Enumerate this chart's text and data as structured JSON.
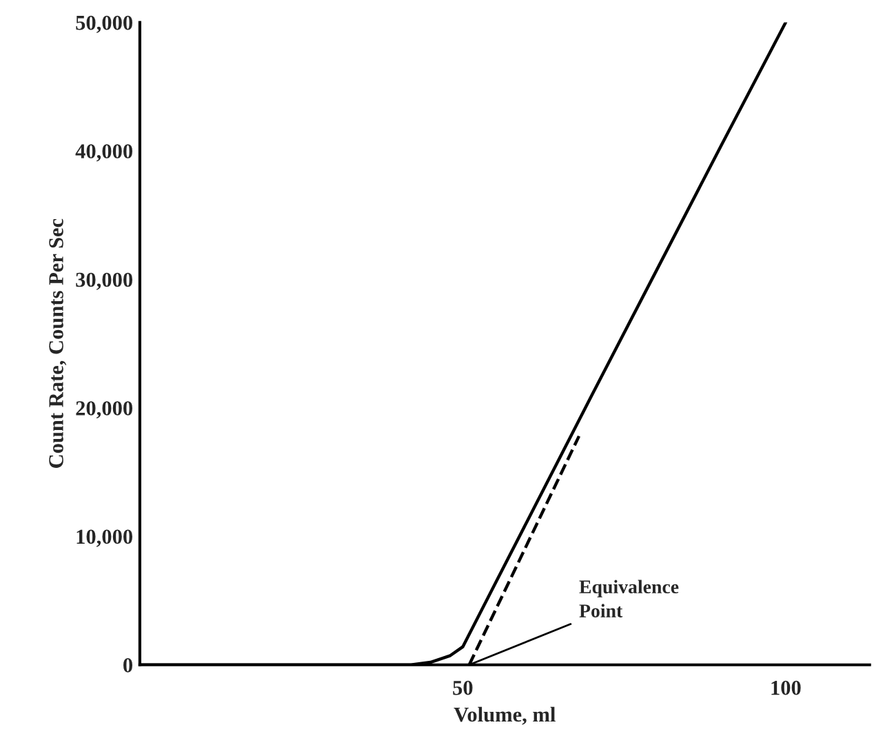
{
  "chart_data": {
    "type": "line",
    "xlabel": "Volume, ml",
    "ylabel": "Count Rate, Counts Per Sec",
    "xlim": [
      0,
      113
    ],
    "ylim": [
      0,
      50000
    ],
    "xticks": [
      50,
      100
    ],
    "yticks": [
      0,
      {
        "value": 10000,
        "label": "10,000"
      },
      {
        "value": 20000,
        "label": "20,000"
      },
      {
        "value": 30000,
        "label": "30,000"
      },
      {
        "value": 40000,
        "label": "40,000"
      },
      {
        "value": 50000,
        "label": "50,000"
      }
    ],
    "grid": false,
    "legend": false,
    "marker": "none",
    "series": [
      {
        "color": "#000000",
        "line_style": "solid",
        "x": [
          0,
          42,
          45,
          48,
          50,
          55,
          60,
          70,
          80,
          90,
          100
        ],
        "values": [
          0,
          0,
          200,
          700,
          1400,
          6300,
          11200,
          21000,
          30700,
          40400,
          50000
        ]
      },
      {
        "color": "#000000",
        "line_style": "dashed",
        "x": [
          51,
          68
        ],
        "values": [
          0,
          17800
        ]
      }
    ],
    "annotations": [
      {
        "text": "Equivalence\nPoint",
        "x": 51,
        "y": 0
      }
    ]
  }
}
